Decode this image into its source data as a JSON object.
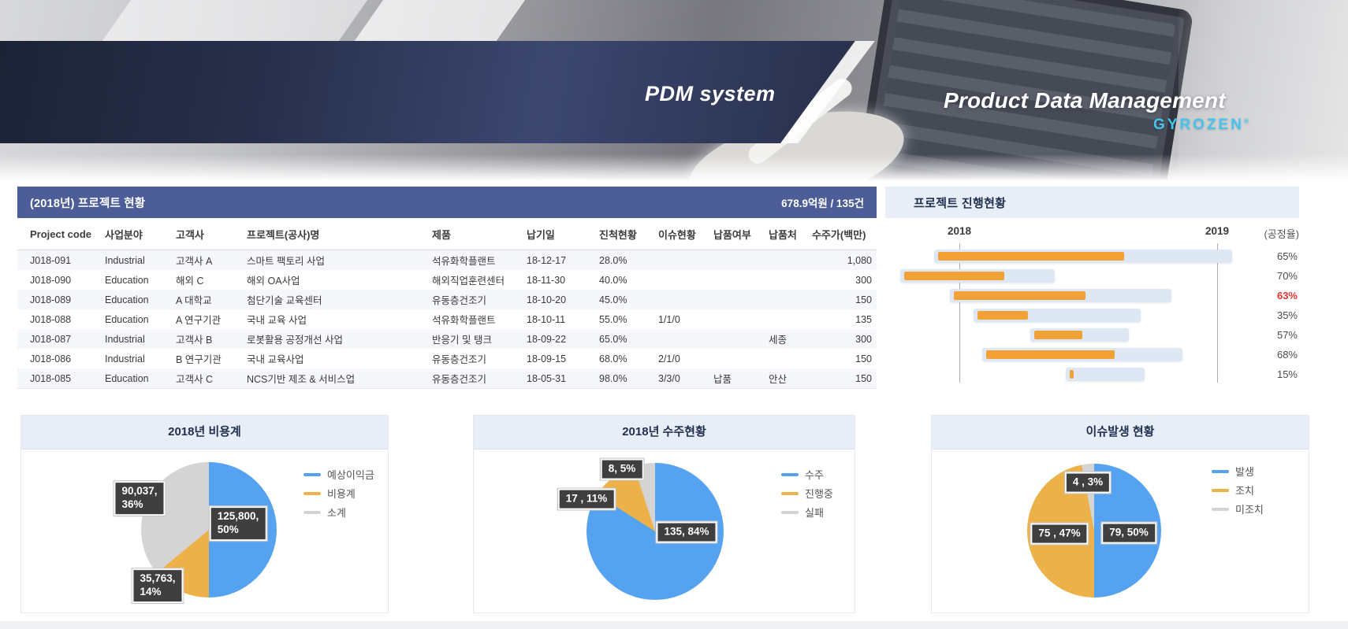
{
  "banner": {
    "system_title": "PDM system",
    "subtitle": "Product Data Management",
    "brand": "GYROZEN",
    "brand_mark": "®"
  },
  "project_table": {
    "title": "(2018년) 프로젝트 현황",
    "summary": "678.9억원 / 135건",
    "columns": [
      "Project code",
      "사업분야",
      "고객사",
      "프로젝트(공사)명",
      "제품",
      "납기일",
      "진척현황",
      "이슈현황",
      "납품여부",
      "납품처",
      "수주가(백만)"
    ],
    "rows": [
      [
        "J018-091",
        "Industrial",
        "고객사 A",
        "스마트 팩토리 사업",
        "석유화학플랜트",
        "18-12-17",
        "28.0%",
        "",
        "",
        "",
        "1,080"
      ],
      [
        "J018-090",
        "Education",
        "해외 C",
        "해외 OA사업",
        "해외직업훈련센터",
        "18-11-30",
        "40.0%",
        "",
        "",
        "",
        "300"
      ],
      [
        "J018-089",
        "Education",
        "A 대학교",
        "첨단기술 교육센터",
        "유동층건조기",
        "18-10-20",
        "45.0%",
        "",
        "",
        "",
        "150"
      ],
      [
        "J018-088",
        "Education",
        "A 연구기관",
        "국내 교육 사업",
        "석유화학플랜트",
        "18-10-11",
        "55.0%",
        "1/1/0",
        "",
        "",
        "135"
      ],
      [
        "J018-087",
        "Industrial",
        "고객사 B",
        "로봇활용 공정개선 사업",
        "반응기 및 탱크",
        "18-09-22",
        "65.0%",
        "",
        "",
        "세종",
        "300"
      ],
      [
        "J018-086",
        "Industrial",
        "B 연구기관",
        "국내 교육사업",
        "유동층건조기",
        "18-09-15",
        "68.0%",
        "2/1/0",
        "",
        "",
        "150"
      ],
      [
        "J018-085",
        "Education",
        "고객사 C",
        "NCS기반 제조 & 서비스업",
        "유동층건조기",
        "18-05-31",
        "98.0%",
        "3/3/0",
        "납품",
        "안산",
        "150"
      ]
    ]
  },
  "chart_data": [
    {
      "type": "gantt",
      "title": "프로젝트 진행현황",
      "x_ticks": [
        "2018",
        "2019"
      ],
      "right_axis_label": "(공정율)",
      "tick_positions_pct": [
        17.9,
        80.2
      ],
      "rows": [
        {
          "percent": "65%",
          "value": 65,
          "alert": false,
          "track_start_pct": 11.8,
          "track_width_pct": 72.0
        },
        {
          "percent": "70%",
          "value": 70,
          "alert": false,
          "track_start_pct": 3.6,
          "track_width_pct": 37.4
        },
        {
          "percent": "63%",
          "value": 63,
          "alert": true,
          "track_start_pct": 15.6,
          "track_width_pct": 53.5
        },
        {
          "percent": "35%",
          "value": 35,
          "alert": false,
          "track_start_pct": 21.3,
          "track_width_pct": 40.4
        },
        {
          "percent": "57%",
          "value": 57,
          "alert": false,
          "track_start_pct": 35.0,
          "track_width_pct": 23.9
        },
        {
          "percent": "68%",
          "value": 68,
          "alert": false,
          "track_start_pct": 23.4,
          "track_width_pct": 48.4
        },
        {
          "percent": "15%",
          "value": 15,
          "alert": false,
          "track_start_pct": 43.6,
          "track_width_pct": 19.1
        }
      ]
    },
    {
      "type": "pie",
      "title": "2018년 비용계",
      "legend": [
        "예상이익금",
        "비용계",
        "소계"
      ],
      "slices": [
        {
          "name": "예상이익금",
          "value": 125800,
          "percent": 50,
          "label": "125,800,\n50%",
          "color": "#55a2f0"
        },
        {
          "name": "비용계",
          "value": 35763,
          "percent": 14,
          "label": "35,763,\n14%",
          "color": "#ecb148"
        },
        {
          "name": "소계",
          "value": 90037,
          "percent": 36,
          "label": "90,037,\n36%",
          "color": "#d4d4d4"
        }
      ]
    },
    {
      "type": "pie",
      "title": "2018년 수주현황",
      "legend": [
        "수주",
        "진행중",
        "실패"
      ],
      "slices": [
        {
          "name": "수주",
          "value": 135,
          "percent": 84,
          "label": "135, 84%",
          "color": "#55a2f0"
        },
        {
          "name": "진행중",
          "value": 17,
          "percent": 11,
          "label": "17 , 11%",
          "color": "#ecb148"
        },
        {
          "name": "실패",
          "value": 8,
          "percent": 5,
          "label": "8, 5%",
          "color": "#d4d4d4"
        }
      ]
    },
    {
      "type": "pie",
      "title": "이슈발생 현황",
      "legend": [
        "발생",
        "조치",
        "미조치"
      ],
      "slices": [
        {
          "name": "발생",
          "value": 79,
          "percent": 50,
          "label": "79, 50%",
          "color": "#55a2f0"
        },
        {
          "name": "조치",
          "value": 75,
          "percent": 47,
          "label": "75 , 47%",
          "color": "#ecb148"
        },
        {
          "name": "미조치",
          "value": 4,
          "percent": 3,
          "label": "4 , 3%",
          "color": "#d4d4d4"
        }
      ]
    }
  ],
  "colors": {
    "table_header_navy": "#4d5d97",
    "panel_header_blue": "#e7eef8",
    "link_blue": "#3e6fd6",
    "alert_red": "#e53333",
    "bar_orange": "#f2a136",
    "bar_track": "#dde8f4",
    "pie_blue": "#55a2f0",
    "pie_orange": "#ecb148",
    "pie_gray": "#d4d4d4",
    "brand_cyan": "#45c4ee"
  }
}
